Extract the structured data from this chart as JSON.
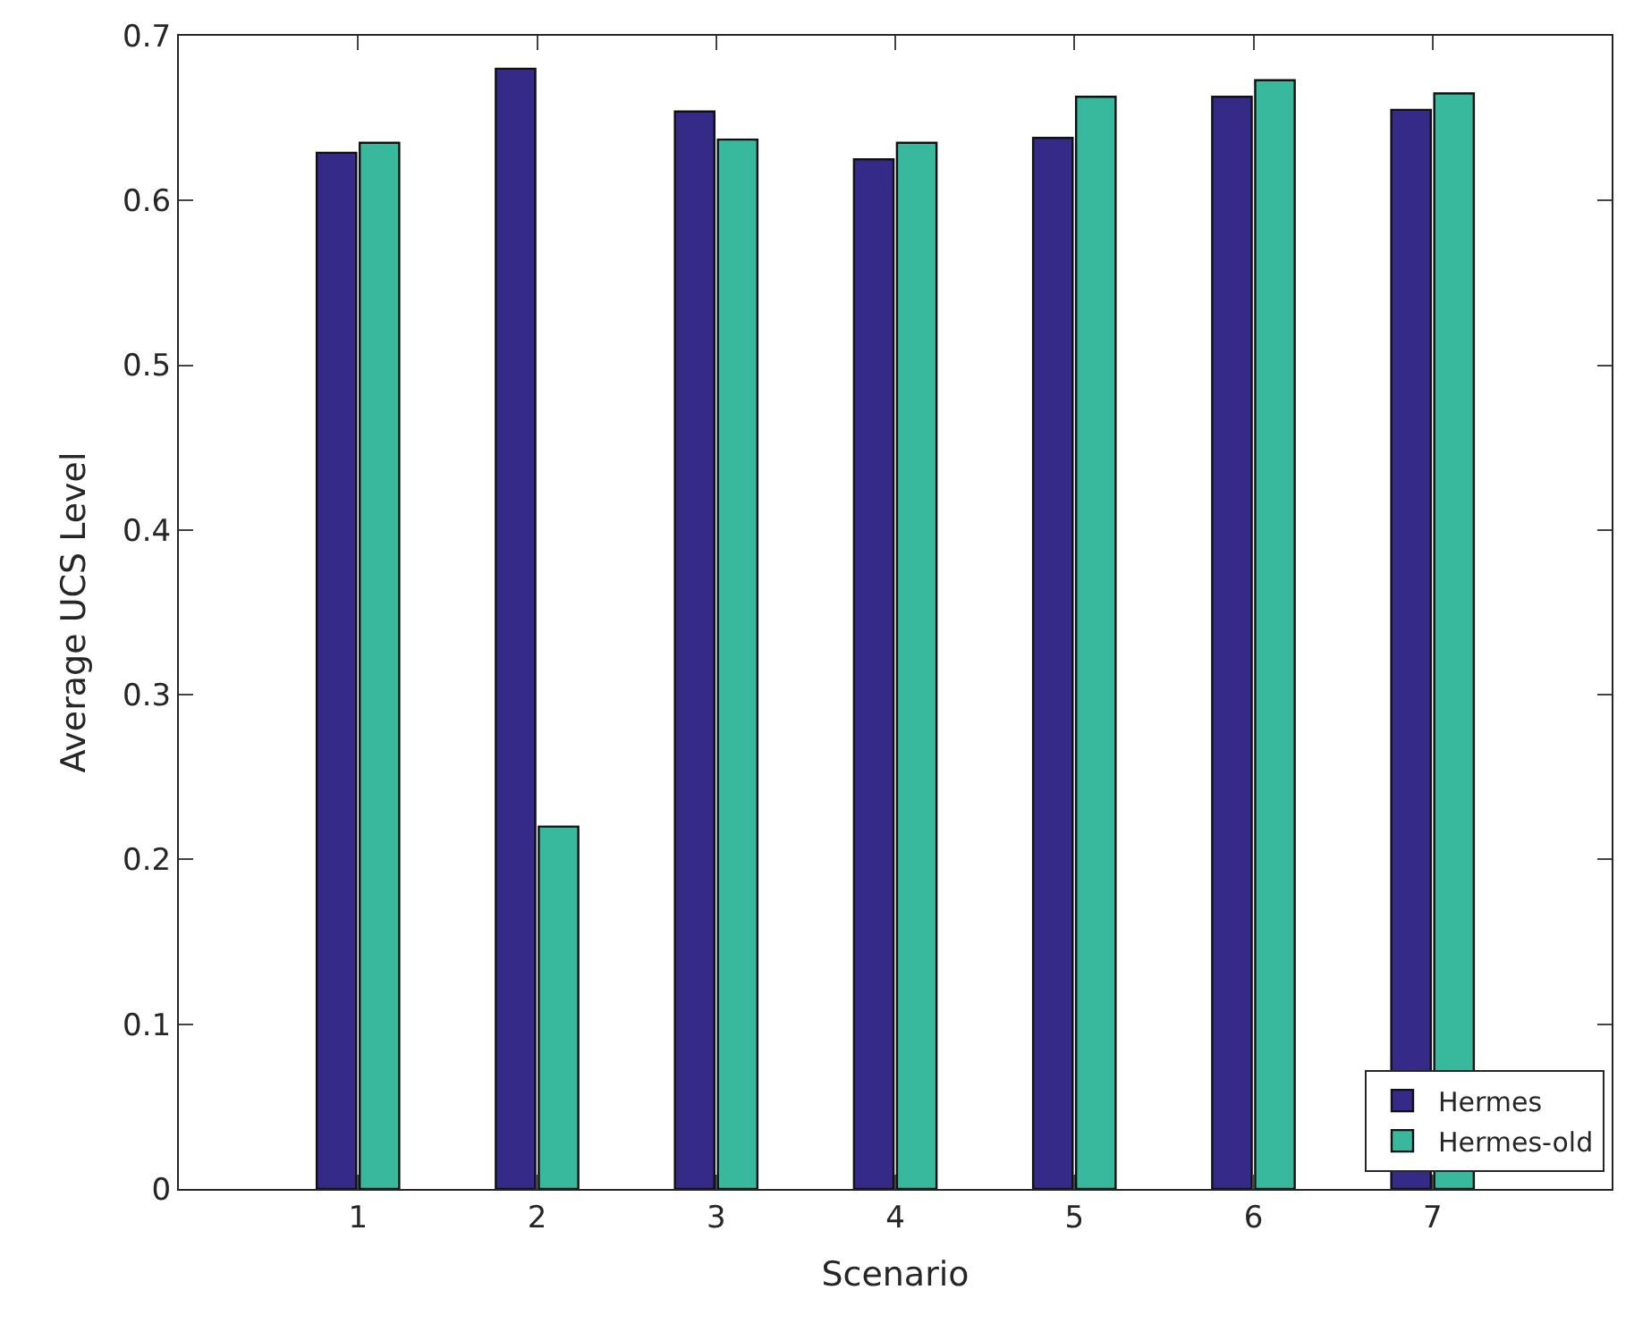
{
  "chart_data": {
    "type": "bar",
    "xlabel": "Scenario",
    "ylabel": "Average UCS Level",
    "categories": [
      "1",
      "2",
      "3",
      "4",
      "5",
      "6",
      "7"
    ],
    "series": [
      {
        "name": "Hermes",
        "color": "#352a87",
        "values": [
          0.629,
          0.68,
          0.654,
          0.625,
          0.638,
          0.663,
          0.655
        ]
      },
      {
        "name": "Hermes-old",
        "color": "#38b99e",
        "values": [
          0.635,
          0.22,
          0.637,
          0.635,
          0.663,
          0.673,
          0.665
        ]
      }
    ],
    "ylim": [
      0,
      0.7
    ],
    "yticks": [
      0,
      0.1,
      0.2,
      0.3,
      0.4,
      0.5,
      0.6,
      0.7
    ],
    "legend": "bottom right"
  }
}
